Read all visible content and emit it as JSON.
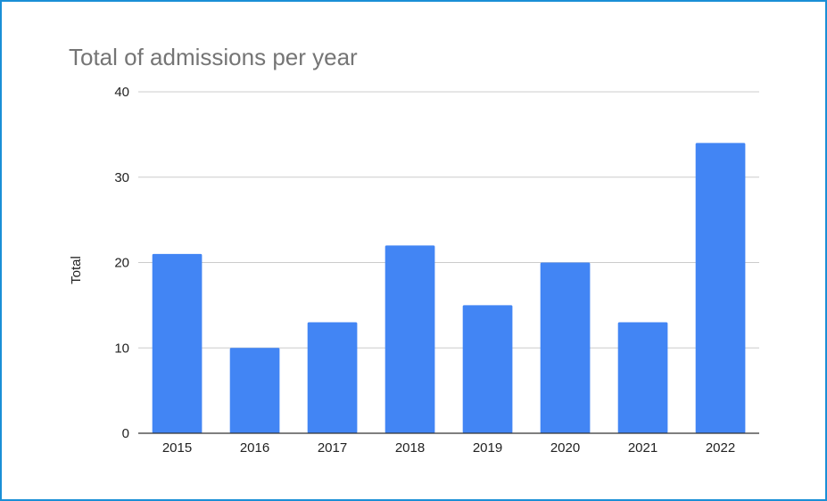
{
  "chart_data": {
    "type": "bar",
    "title": "Total of admissions per year",
    "xlabel": "",
    "ylabel": "Total",
    "categories": [
      "2015",
      "2016",
      "2017",
      "2018",
      "2019",
      "2020",
      "2021",
      "2022"
    ],
    "values": [
      21,
      10,
      13,
      22,
      15,
      20,
      13,
      34
    ],
    "ylim": [
      0,
      40
    ],
    "yticks": [
      "0",
      "10",
      "20",
      "30",
      "40"
    ],
    "grid": true,
    "legend": "none",
    "colors": {
      "bar": "#4285f4",
      "grid": "#cccccc",
      "axis": "#333333",
      "frame": "#1a8fd6"
    }
  }
}
